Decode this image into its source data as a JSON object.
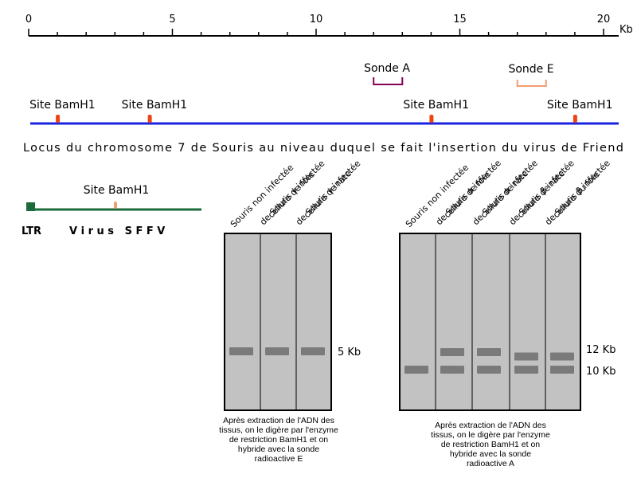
{
  "scale": {
    "unit": "Kb",
    "max": 20.5,
    "major_ticks": [
      {
        "value": 0,
        "label": "0"
      },
      {
        "value": 5,
        "label": "5"
      },
      {
        "value": 10,
        "label": "10"
      },
      {
        "value": 15,
        "label": "15"
      },
      {
        "value": 20,
        "label": "20"
      }
    ]
  },
  "probes": {
    "probe_a": {
      "label": "Sonde A",
      "start_kb": 12.0,
      "end_kb": 13.0,
      "color": "#880055"
    },
    "probe_e": {
      "label": "Sonde E",
      "start_kb": 17.0,
      "end_kb": 18.0,
      "color": "#f0a070"
    }
  },
  "locus": {
    "caption": "Locus du chromosome 7 de Souris au niveau duquel se fait l'insertion du virus de Friend",
    "line_color": "#1a23e0",
    "site_color": "#ee4411",
    "sites": [
      {
        "label": "Site BamH1",
        "position_kb": 1.0
      },
      {
        "label": "Site BamH1",
        "position_kb": 4.2
      },
      {
        "label": "Site BamH1",
        "position_kb": 14.0
      },
      {
        "label": "Site BamH1",
        "position_kb": 19.0
      }
    ]
  },
  "virus": {
    "site_label": "Site BamH1",
    "ltr_label": "LTR",
    "name_label": "V i r u s   S F F V",
    "line_color": "#1a6a3a",
    "site_color": "#f0a070"
  },
  "gel1": {
    "lanes": [
      {
        "label": "Souris non infectée",
        "bands_kb": [
          5
        ]
      },
      {
        "label1": "cellule de foie",
        "label2": "de Souris γ infectée",
        "bands_kb": [
          5
        ]
      },
      {
        "label1": "cellule de rate",
        "label2": "de Souris γ infectée",
        "bands_kb": [
          5
        ]
      }
    ],
    "size_markers": [
      {
        "kb": 5,
        "label": "5 Kb"
      }
    ],
    "caption": [
      "Après extraction de l'ADN des",
      "tissus, on le digère par l'enzyme",
      "de restriction BamH1 et on",
      "hybride avec la sonde",
      "radioactive E"
    ]
  },
  "gel2": {
    "lanes": [
      {
        "label": "Souris non infectée",
        "bands_kb": [
          10
        ]
      },
      {
        "label1": "cellule de foie",
        "label2": "de Souris α infectée",
        "bands_kb": [
          12,
          10
        ]
      },
      {
        "label1": "cellule de rate",
        "label2": "de Souris α infectée",
        "bands_kb": [
          12,
          10
        ]
      },
      {
        "label1": "cellule de rate",
        "label2": "de Souris β infectée",
        "bands_kb": [
          11.5,
          10
        ]
      },
      {
        "label1": "cellule du foie",
        "label2": "de Souris β infectée",
        "bands_kb": [
          11.5,
          10
        ]
      }
    ],
    "size_markers": [
      {
        "kb": 12,
        "label": "12 Kb"
      },
      {
        "kb": 10,
        "label": "10 Kb"
      }
    ],
    "caption": [
      "Après extraction de l'ADN des",
      "tissus, on le digère par l'enzyme",
      "de restriction BamH1 et on",
      "hybride avec la sonde",
      "radioactive A"
    ]
  }
}
